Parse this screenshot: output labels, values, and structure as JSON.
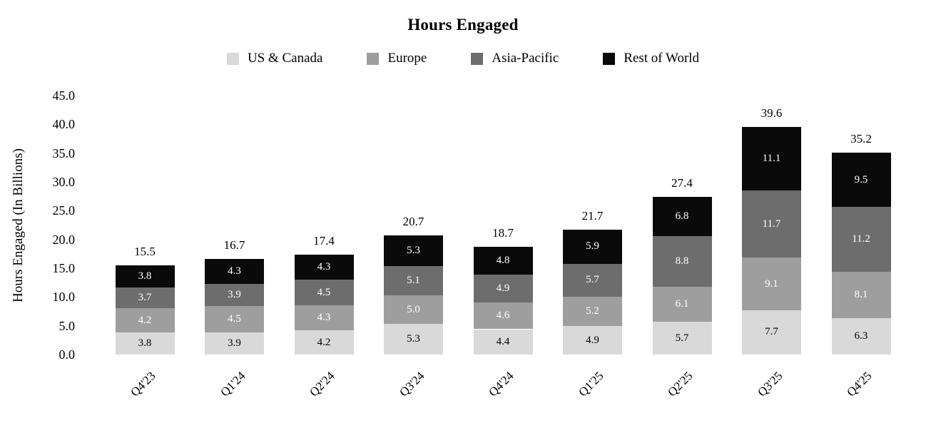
{
  "chart": {
    "title": "Hours Engaged",
    "y_axis": {
      "label": "Hours Engaged (In Billions)",
      "ticks": [
        "0.0",
        "5.0",
        "10.0",
        "15.0",
        "20.0",
        "25.0",
        "30.0",
        "35.0",
        "40.0",
        "45.0"
      ]
    },
    "chart_data": {
      "type": "bar",
      "stacked": true,
      "title": "Hours Engaged",
      "xlabel": "",
      "ylabel": "Hours Engaged (In Billions)",
      "ylim": [
        0,
        45
      ],
      "grid": false,
      "legend_position": "top",
      "categories": [
        "Q4'23",
        "Q1'24",
        "Q2'24",
        "Q3'24",
        "Q4'24",
        "Q1'25",
        "Q2'25",
        "Q3'25",
        "Q4'25"
      ],
      "series": [
        {
          "name": "US & Canada",
          "color": "#d9d9d9",
          "label_color": "#000000",
          "values": [
            3.8,
            3.9,
            4.2,
            5.3,
            4.4,
            4.9,
            5.7,
            7.7,
            6.3
          ]
        },
        {
          "name": "Europe",
          "color": "#9e9e9e",
          "label_color": "#ffffff",
          "values": [
            4.2,
            4.5,
            4.3,
            5.0,
            4.6,
            5.2,
            6.1,
            9.1,
            8.1
          ]
        },
        {
          "name": "Asia-Pacific",
          "color": "#6d6d6d",
          "label_color": "#ffffff",
          "values": [
            3.7,
            3.9,
            4.5,
            5.1,
            4.9,
            5.7,
            8.8,
            11.7,
            11.2
          ]
        },
        {
          "name": "Rest of World",
          "color": "#0a0a0a",
          "label_color": "#ffffff",
          "values": [
            3.8,
            4.3,
            4.3,
            5.3,
            4.8,
            5.9,
            6.8,
            11.1,
            9.5
          ]
        }
      ],
      "totals": [
        "15.5",
        "16.7",
        "17.4",
        "20.7",
        "18.7",
        "21.7",
        "27.4",
        "39.6",
        "35.2"
      ]
    }
  }
}
